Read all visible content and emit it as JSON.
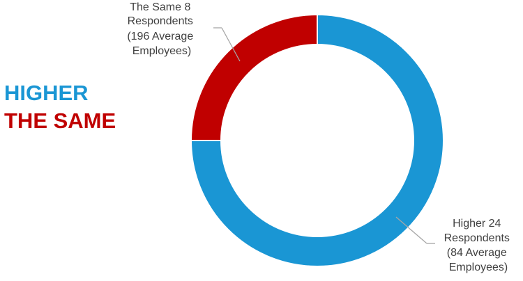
{
  "chart_data": {
    "type": "pie",
    "donut": true,
    "legend": {
      "placement": "left",
      "entries": [
        {
          "label": "HIGHER",
          "color": "#1a96d4"
        },
        {
          "label": "THE SAME",
          "color": "#c00000"
        }
      ]
    },
    "slices": [
      {
        "name": "Higher",
        "value": 24,
        "color": "#1a96d4",
        "label_lines": [
          "Higher 24",
          "Respondents",
          "(84 Average",
          "Employees)"
        ]
      },
      {
        "name": "The Same",
        "value": 8,
        "color": "#c00000",
        "label_lines": [
          "The Same 8",
          "Respondents",
          "(196 Average",
          "Employees)"
        ]
      }
    ]
  }
}
